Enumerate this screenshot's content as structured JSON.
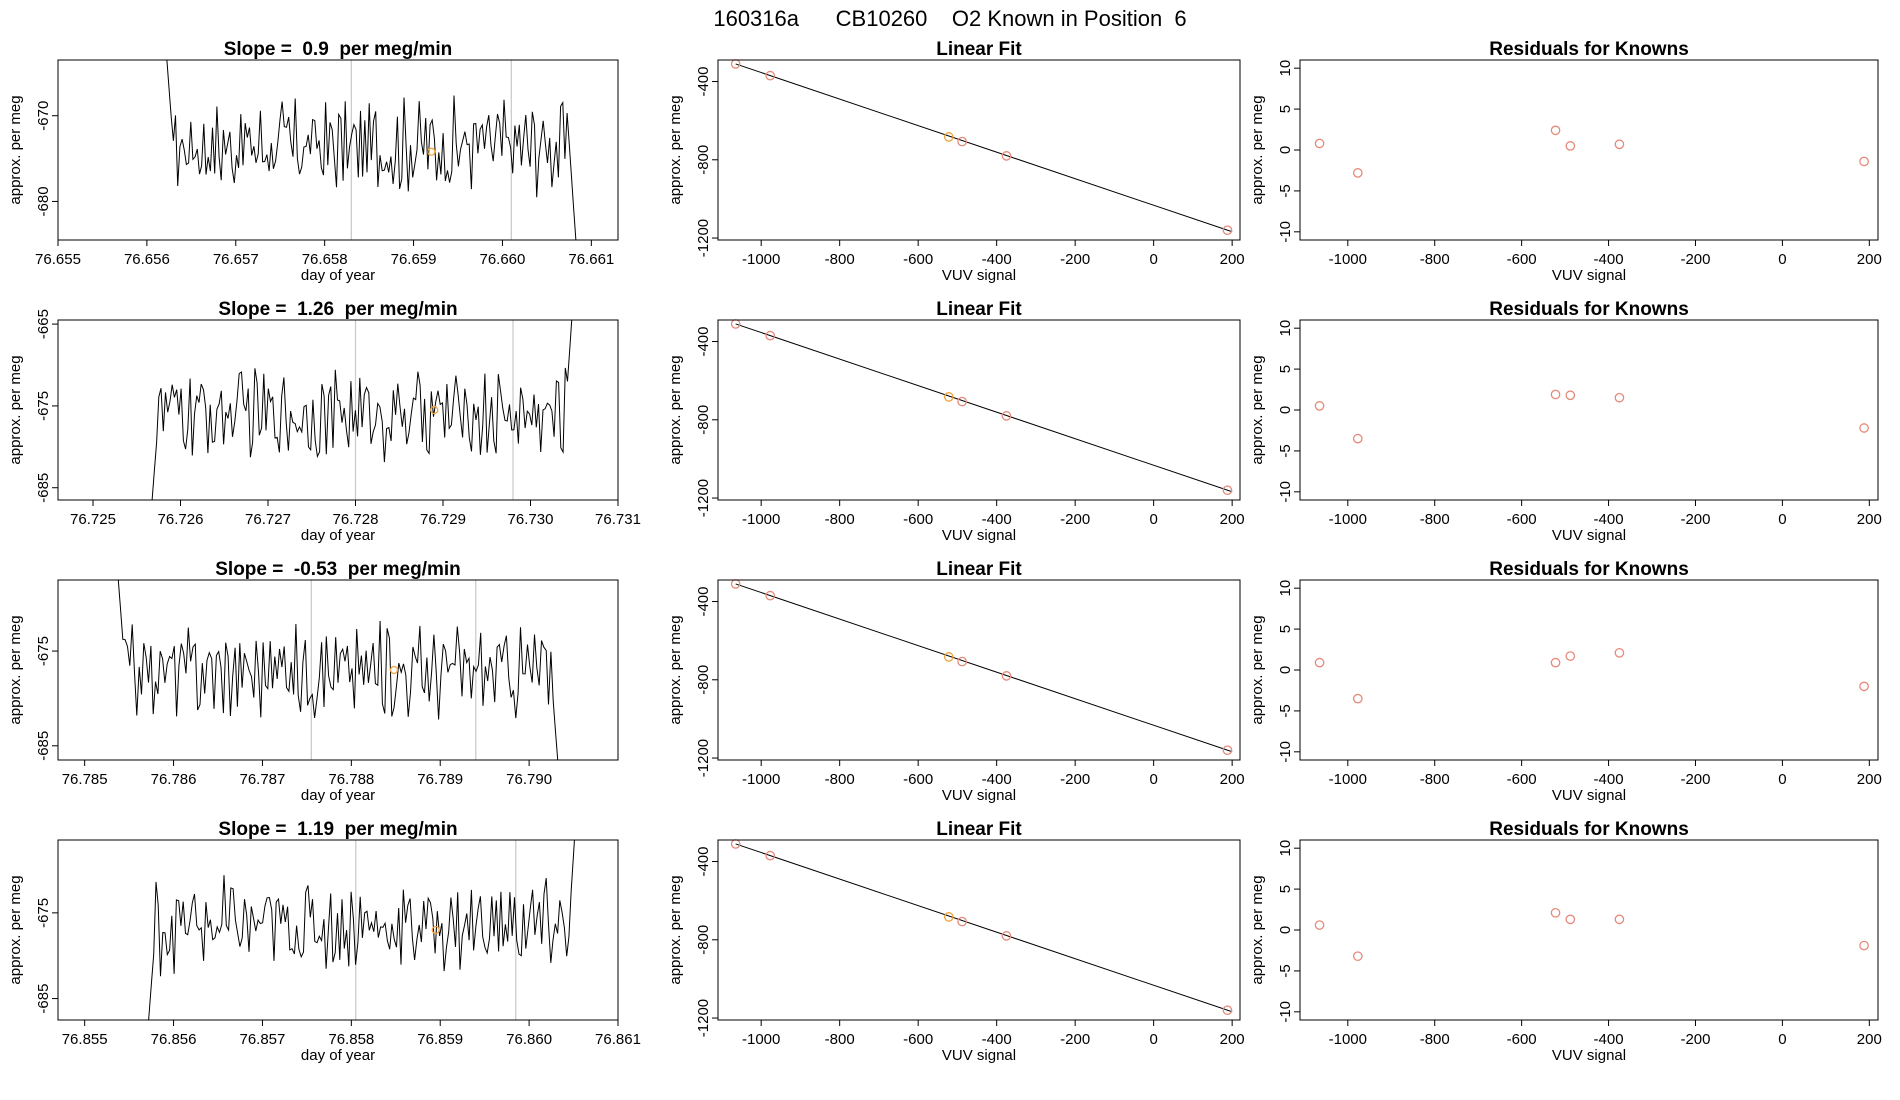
{
  "page_title": "160316a      CB10260    O2 Known in Position  6",
  "colors": {
    "line": "#000000",
    "known": "#e58a7a",
    "selected": "#f2a33a",
    "vline": "#c8c8c8"
  },
  "chart_data": [
    {
      "type": "line",
      "title": "Slope =  0.9  per meg/min",
      "xlabel": "day of year",
      "ylabel": "approx. per meg",
      "xlim": [
        76.655,
        76.6613
      ],
      "ylim": [
        -684.5,
        -663.5
      ],
      "xticks": [
        "76.655",
        "76.656",
        "76.657",
        "76.658",
        "76.659",
        "76.660",
        "76.661"
      ],
      "xtick_values": [
        76.655,
        76.656,
        76.657,
        76.658,
        76.659,
        76.66,
        76.661
      ],
      "yticks": [
        "-670",
        "-680"
      ],
      "ytick_values": [
        -670,
        -680
      ],
      "x_start": 76.6562,
      "x_end": 76.66085,
      "x_enter": -660,
      "x_exit": -688,
      "vlines": [
        76.6583,
        76.6601
      ],
      "marker": {
        "x": 76.6592,
        "y": -674.2
      },
      "mean": -673.5,
      "amplitude": 4.5
    },
    {
      "type": "line",
      "title": "Slope =  1.26  per meg/min",
      "xlabel": "day of year",
      "ylabel": "approx. per meg",
      "xlim": [
        76.7246,
        76.731
      ],
      "ylim": [
        -686.5,
        -664.5
      ],
      "xticks": [
        "76.725",
        "76.726",
        "76.727",
        "76.728",
        "76.729",
        "76.730",
        "76.731"
      ],
      "xtick_values": [
        76.725,
        76.726,
        76.727,
        76.728,
        76.729,
        76.73,
        76.731
      ],
      "yticks": [
        "-665",
        "-675",
        "-685"
      ],
      "ytick_values": [
        -665,
        -675,
        -685
      ],
      "x_start": 76.72565,
      "x_end": 76.7305,
      "x_enter": -690,
      "x_exit": -660,
      "vlines": [
        76.728,
        76.7298
      ],
      "marker": {
        "x": 76.7289,
        "y": -675.5
      },
      "mean": -676.0,
      "amplitude": 4.5
    },
    {
      "type": "line",
      "title": "Slope =  -0.53  per meg/min",
      "xlabel": "day of year",
      "ylabel": "approx. per meg",
      "xlim": [
        76.7847,
        76.791
      ],
      "ylim": [
        -686.5,
        -667.5
      ],
      "xticks": [
        "76.785",
        "76.786",
        "76.787",
        "76.788",
        "76.789",
        "76.790"
      ],
      "xtick_values": [
        76.785,
        76.786,
        76.787,
        76.788,
        76.789,
        76.79
      ],
      "yticks": [
        "-675",
        "-685"
      ],
      "ytick_values": [
        -675,
        -685
      ],
      "x_start": 76.78535,
      "x_end": 76.79035,
      "x_enter": -664,
      "x_exit": -690,
      "vlines": [
        76.78755,
        76.7894
      ],
      "marker": {
        "x": 76.78848,
        "y": -677.0
      },
      "mean": -677.0,
      "amplitude": 4.0
    },
    {
      "type": "line",
      "title": "Slope =  1.19  per meg/min",
      "xlabel": "day of year",
      "ylabel": "approx. per meg",
      "xlim": [
        76.8547,
        76.861
      ],
      "ylim": [
        -687.5,
        -666.5
      ],
      "xticks": [
        "76.855",
        "76.856",
        "76.857",
        "76.858",
        "76.859",
        "76.860",
        "76.861"
      ],
      "xtick_values": [
        76.855,
        76.856,
        76.857,
        76.858,
        76.859,
        76.86,
        76.861
      ],
      "yticks": [
        "-675",
        "-685"
      ],
      "ytick_values": [
        -675,
        -685
      ],
      "x_start": 76.8557,
      "x_end": 76.86055,
      "x_enter": -690,
      "x_exit": -660,
      "vlines": [
        76.85805,
        76.85985
      ],
      "marker": {
        "x": 76.85895,
        "y": -677.0
      },
      "mean": -676.5,
      "amplitude": 4.5
    },
    {
      "type": "scatter",
      "title": "Linear Fit",
      "xlabel": "VUV signal",
      "ylabel": "approx. per meg",
      "xlim": [
        -1110,
        220
      ],
      "ylim": [
        -1210,
        -290
      ],
      "xticks": [
        "-1000",
        "-800",
        "-600",
        "-400",
        "-200",
        "0",
        "200"
      ],
      "xtick_values": [
        -1000,
        -800,
        -600,
        -400,
        -200,
        0,
        200
      ],
      "yticks": [
        "-400",
        "-800",
        "-1200"
      ],
      "ytick_values": [
        -400,
        -800,
        -1200
      ],
      "x": [
        -1065,
        -977,
        -522,
        -488,
        -375,
        188
      ],
      "y": [
        -310,
        -370,
        -683,
        -707,
        -780,
        -1160
      ],
      "selected_index": 2,
      "fit": {
        "x": [
          -1065,
          200
        ],
        "y": [
          -310,
          -1168
        ]
      }
    },
    {
      "type": "scatter",
      "title": "Linear Fit",
      "xlabel": "VUV signal",
      "ylabel": "approx. per meg",
      "xlim": [
        -1110,
        220
      ],
      "ylim": [
        -1210,
        -290
      ],
      "xticks": [
        "-1000",
        "-800",
        "-600",
        "-400",
        "-200",
        "0",
        "200"
      ],
      "xtick_values": [
        -1000,
        -800,
        -600,
        -400,
        -200,
        0,
        200
      ],
      "yticks": [
        "-400",
        "-800",
        "-1200"
      ],
      "ytick_values": [
        -400,
        -800,
        -1200
      ],
      "x": [
        -1065,
        -977,
        -522,
        -488,
        -375,
        188
      ],
      "y": [
        -310,
        -370,
        -683,
        -707,
        -780,
        -1160
      ],
      "selected_index": 2,
      "fit": {
        "x": [
          -1065,
          200
        ],
        "y": [
          -310,
          -1168
        ]
      }
    },
    {
      "type": "scatter",
      "title": "Linear Fit",
      "xlabel": "VUV signal",
      "ylabel": "approx. per meg",
      "xlim": [
        -1110,
        220
      ],
      "ylim": [
        -1210,
        -290
      ],
      "xticks": [
        "-1000",
        "-800",
        "-600",
        "-400",
        "-200",
        "0",
        "200"
      ],
      "xtick_values": [
        -1000,
        -800,
        -600,
        -400,
        -200,
        0,
        200
      ],
      "yticks": [
        "-400",
        "-800",
        "-1200"
      ],
      "ytick_values": [
        -400,
        -800,
        -1200
      ],
      "x": [
        -1065,
        -977,
        -522,
        -488,
        -375,
        188
      ],
      "y": [
        -310,
        -370,
        -683,
        -707,
        -780,
        -1160
      ],
      "selected_index": 2,
      "fit": {
        "x": [
          -1065,
          200
        ],
        "y": [
          -310,
          -1168
        ]
      }
    },
    {
      "type": "scatter",
      "title": "Linear Fit",
      "xlabel": "VUV signal",
      "ylabel": "approx. per meg",
      "xlim": [
        -1110,
        220
      ],
      "ylim": [
        -1210,
        -290
      ],
      "xticks": [
        "-1000",
        "-800",
        "-600",
        "-400",
        "-200",
        "0",
        "200"
      ],
      "xtick_values": [
        -1000,
        -800,
        -600,
        -400,
        -200,
        0,
        200
      ],
      "yticks": [
        "-400",
        "-800",
        "-1200"
      ],
      "ytick_values": [
        -400,
        -800,
        -1200
      ],
      "x": [
        -1065,
        -977,
        -522,
        -488,
        -375,
        188
      ],
      "y": [
        -310,
        -370,
        -683,
        -707,
        -780,
        -1160
      ],
      "selected_index": 2,
      "fit": {
        "x": [
          -1065,
          200
        ],
        "y": [
          -310,
          -1168
        ]
      }
    },
    {
      "type": "scatter",
      "title": "Residuals for Knowns",
      "xlabel": "VUV signal",
      "ylabel": "approx. per meg",
      "xlim": [
        -1110,
        220
      ],
      "ylim": [
        -11,
        11
      ],
      "xticks": [
        "-1000",
        "-800",
        "-600",
        "-400",
        "-200",
        "0",
        "200"
      ],
      "xtick_values": [
        -1000,
        -800,
        -600,
        -400,
        -200,
        0,
        200
      ],
      "yticks": [
        "10",
        "5",
        "0",
        "-5",
        "-10"
      ],
      "ytick_values": [
        10,
        5,
        0,
        -5,
        -10
      ],
      "x": [
        -1065,
        -977,
        -522,
        -488,
        -375,
        188
      ],
      "y": [
        0.8,
        -2.8,
        2.4,
        0.5,
        0.7,
        -1.4
      ]
    },
    {
      "type": "scatter",
      "title": "Residuals for Knowns",
      "xlabel": "VUV signal",
      "ylabel": "approx. per meg",
      "xlim": [
        -1110,
        220
      ],
      "ylim": [
        -11,
        11
      ],
      "xticks": [
        "-1000",
        "-800",
        "-600",
        "-400",
        "-200",
        "0",
        "200"
      ],
      "xtick_values": [
        -1000,
        -800,
        -600,
        -400,
        -200,
        0,
        200
      ],
      "yticks": [
        "10",
        "5",
        "0",
        "-5",
        "-10"
      ],
      "ytick_values": [
        10,
        5,
        0,
        -5,
        -10
      ],
      "x": [
        -1065,
        -977,
        -522,
        -488,
        -375,
        188
      ],
      "y": [
        0.5,
        -3.5,
        1.9,
        1.8,
        1.5,
        -2.2
      ]
    },
    {
      "type": "scatter",
      "title": "Residuals for Knowns",
      "xlabel": "VUV signal",
      "ylabel": "approx. per meg",
      "xlim": [
        -1110,
        220
      ],
      "ylim": [
        -11,
        11
      ],
      "xticks": [
        "-1000",
        "-800",
        "-600",
        "-400",
        "-200",
        "0",
        "200"
      ],
      "xtick_values": [
        -1000,
        -800,
        -600,
        -400,
        -200,
        0,
        200
      ],
      "yticks": [
        "10",
        "5",
        "0",
        "-5",
        "-10"
      ],
      "ytick_values": [
        10,
        5,
        0,
        -5,
        -10
      ],
      "x": [
        -1065,
        -977,
        -522,
        -488,
        -375,
        188
      ],
      "y": [
        0.9,
        -3.5,
        0.9,
        1.7,
        2.1,
        -2.0
      ]
    },
    {
      "type": "scatter",
      "title": "Residuals for Knowns",
      "xlabel": "VUV signal",
      "ylabel": "approx. per meg",
      "xlim": [
        -1110,
        220
      ],
      "ylim": [
        -11,
        11
      ],
      "xticks": [
        "-1000",
        "-800",
        "-600",
        "-400",
        "-200",
        "0",
        "200"
      ],
      "xtick_values": [
        -1000,
        -800,
        -600,
        -400,
        -200,
        0,
        200
      ],
      "yticks": [
        "10",
        "5",
        "0",
        "-5",
        "-10"
      ],
      "ytick_values": [
        10,
        5,
        0,
        -5,
        -10
      ],
      "x": [
        -1065,
        -977,
        -522,
        -488,
        -375,
        188
      ],
      "y": [
        0.6,
        -3.2,
        2.1,
        1.3,
        1.3,
        -1.9
      ]
    }
  ]
}
